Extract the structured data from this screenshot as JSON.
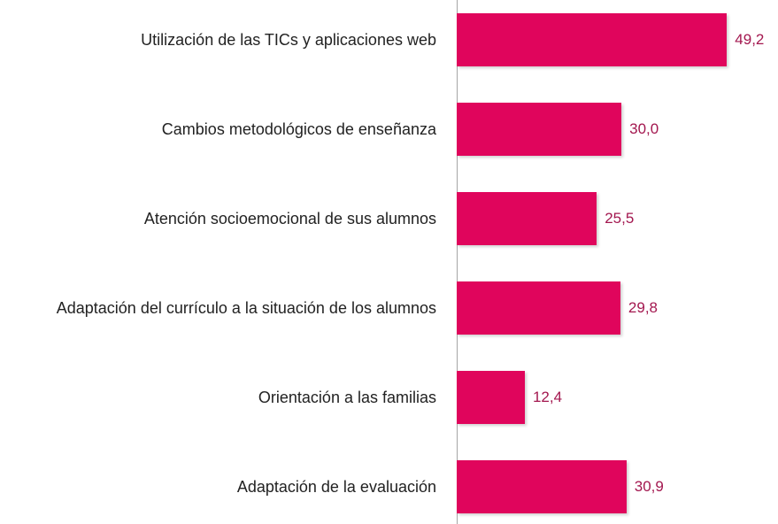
{
  "chart_data": {
    "type": "bar",
    "orientation": "horizontal",
    "categories": [
      "Utilización de las TICs y aplicaciones web",
      "Cambios metodológicos de enseñanza",
      "Atención socioemocional de sus alumnos",
      "Adaptación del currículo a la situación de los alumnos",
      "Orientación a las familias",
      "Adaptación de la evaluación"
    ],
    "values": [
      49.2,
      30.0,
      25.5,
      29.8,
      12.4,
      30.9
    ],
    "value_labels": [
      "49,2",
      "30,0",
      "25,5",
      "29,8",
      "12,4",
      "30,9"
    ],
    "color": "#e0055c",
    "label_color": "#a3174f",
    "xlim": [
      0,
      58.5
    ]
  }
}
